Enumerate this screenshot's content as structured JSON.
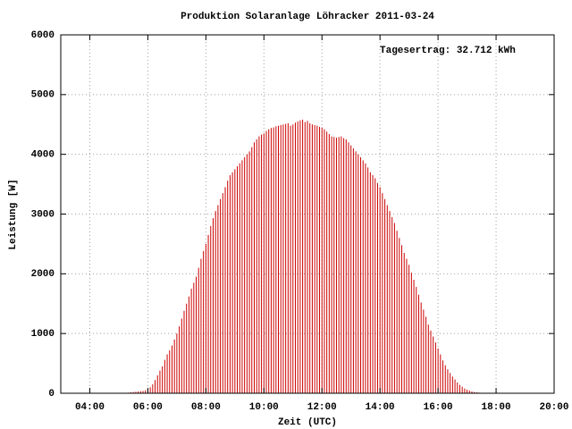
{
  "chart_data": {
    "type": "impulse",
    "title": "Produktion Solaranlage Löhracker 2011-03-24",
    "annotation": "Tagesertrag: 32.712 kWh",
    "xlabel": "Zeit (UTC)",
    "ylabel": "Leistung [W]",
    "color": "#cc0000",
    "grid": true,
    "xlim": [
      180,
      1200
    ],
    "xticks": [
      {
        "value": 240,
        "label": "04:00"
      },
      {
        "value": 360,
        "label": "06:00"
      },
      {
        "value": 480,
        "label": "08:00"
      },
      {
        "value": 600,
        "label": "10:00"
      },
      {
        "value": 720,
        "label": "12:00"
      },
      {
        "value": 840,
        "label": "14:00"
      },
      {
        "value": 960,
        "label": "16:00"
      },
      {
        "value": 1080,
        "label": "18:00"
      },
      {
        "value": 1200,
        "label": "20:00"
      }
    ],
    "ylim": [
      0,
      6000
    ],
    "yticks": [
      0,
      1000,
      2000,
      3000,
      4000,
      5000,
      6000
    ],
    "x": [
      320,
      325,
      330,
      335,
      340,
      345,
      350,
      355,
      360,
      365,
      370,
      375,
      380,
      385,
      390,
      395,
      400,
      405,
      410,
      415,
      420,
      425,
      430,
      435,
      440,
      445,
      450,
      455,
      460,
      465,
      470,
      475,
      480,
      485,
      490,
      495,
      500,
      505,
      510,
      515,
      520,
      525,
      530,
      535,
      540,
      545,
      550,
      555,
      560,
      565,
      570,
      575,
      580,
      585,
      590,
      595,
      600,
      605,
      610,
      615,
      620,
      625,
      630,
      635,
      640,
      645,
      650,
      655,
      660,
      665,
      670,
      675,
      680,
      685,
      690,
      695,
      700,
      705,
      710,
      715,
      720,
      725,
      730,
      735,
      740,
      745,
      750,
      755,
      760,
      765,
      770,
      775,
      780,
      785,
      790,
      795,
      800,
      805,
      810,
      815,
      820,
      825,
      830,
      835,
      840,
      845,
      850,
      855,
      860,
      865,
      870,
      875,
      880,
      885,
      890,
      895,
      900,
      905,
      910,
      915,
      920,
      925,
      930,
      935,
      940,
      945,
      950,
      955,
      960,
      965,
      970,
      975,
      980,
      985,
      990,
      995,
      1000,
      1005,
      1010,
      1015,
      1020,
      1025,
      1030,
      1035,
      1040,
      1045,
      1050,
      1055,
      1060
    ],
    "values": [
      10,
      15,
      20,
      25,
      30,
      35,
      40,
      50,
      60,
      100,
      150,
      220,
      300,
      380,
      450,
      560,
      650,
      720,
      800,
      900,
      1000,
      1120,
      1250,
      1380,
      1500,
      1620,
      1750,
      1850,
      1950,
      2100,
      2250,
      2380,
      2500,
      2650,
      2800,
      2930,
      3050,
      3150,
      3250,
      3350,
      3450,
      3560,
      3650,
      3700,
      3750,
      3800,
      3850,
      3900,
      3950,
      4000,
      4050,
      4120,
      4200,
      4250,
      4300,
      4330,
      4350,
      4390,
      4420,
      4440,
      4450,
      4470,
      4480,
      4490,
      4500,
      4510,
      4520,
      4480,
      4500,
      4530,
      4550,
      4570,
      4580,
      4540,
      4560,
      4520,
      4500,
      4490,
      4480,
      4460,
      4450,
      4420,
      4380,
      4340,
      4300,
      4290,
      4280,
      4290,
      4300,
      4270,
      4250,
      4200,
      4150,
      4100,
      4050,
      4000,
      3950,
      3900,
      3850,
      3780,
      3700,
      3650,
      3600,
      3520,
      3450,
      3350,
      3250,
      3150,
      3050,
      2950,
      2850,
      2720,
      2600,
      2480,
      2350,
      2250,
      2150,
      2020,
      1900,
      1780,
      1650,
      1520,
      1400,
      1280,
      1150,
      1050,
      950,
      850,
      750,
      650,
      550,
      470,
      400,
      340,
      280,
      230,
      180,
      140,
      110,
      80,
      60,
      45,
      30,
      20,
      15,
      10,
      8,
      5,
      3
    ]
  }
}
